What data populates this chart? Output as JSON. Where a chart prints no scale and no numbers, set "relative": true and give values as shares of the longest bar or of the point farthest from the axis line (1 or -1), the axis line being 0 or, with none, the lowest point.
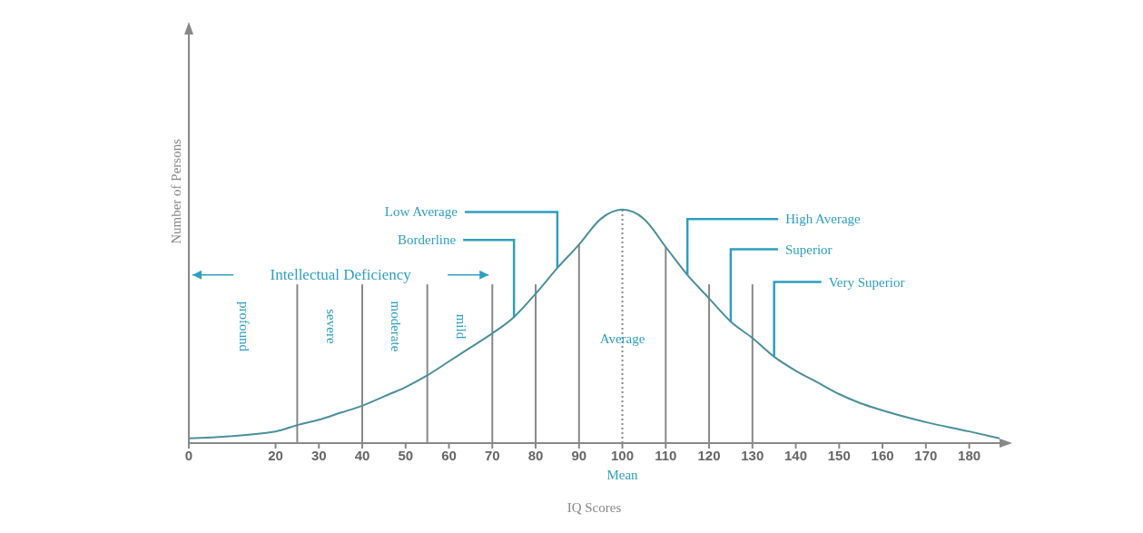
{
  "chart_data": {
    "type": "line",
    "relative": true,
    "xlabel": "IQ Scores",
    "ylabel": "Number of Persons",
    "x": [
      0,
      20,
      25,
      30,
      35,
      40,
      45,
      50,
      55,
      60,
      65,
      70,
      75,
      80,
      85,
      90,
      95,
      100,
      105,
      110,
      115,
      120,
      125,
      130,
      135,
      140,
      145,
      150,
      155,
      160,
      170,
      180,
      187
    ],
    "series": [
      {
        "color": "#4a8f9a",
        "values": [
          0.02,
          0.05,
          0.077,
          0.1,
          0.13,
          0.16,
          0.2,
          0.24,
          0.29,
          0.35,
          0.41,
          0.47,
          0.54,
          0.64,
          0.75,
          0.85,
          0.96,
          1,
          0.96,
          0.84,
          0.72,
          0.62,
          0.52,
          0.45,
          0.37,
          0.31,
          0.26,
          0.21,
          0.17,
          0.14,
          0.09,
          0.05,
          0.02
        ]
      }
    ],
    "xlim": [
      0,
      187
    ],
    "xticks": [
      0,
      20,
      30,
      40,
      50,
      60,
      70,
      80,
      90,
      100,
      110,
      120,
      130,
      140,
      150,
      160,
      170,
      180
    ],
    "marker": "none",
    "line_style": "solid",
    "ref_lines": [
      {
        "axis": "x",
        "value": 25,
        "color": "#888888"
      },
      {
        "axis": "x",
        "value": 40,
        "color": "#888888"
      },
      {
        "axis": "x",
        "value": 55,
        "color": "#888888"
      },
      {
        "axis": "x",
        "value": 70,
        "color": "#888888"
      },
      {
        "axis": "x",
        "value": 80,
        "color": "#888888"
      },
      {
        "axis": "x",
        "value": 90,
        "color": "#888888"
      },
      {
        "axis": "x",
        "value": 100,
        "color": "#888888",
        "line_style": "dotted"
      },
      {
        "axis": "x",
        "value": 110,
        "color": "#888888"
      },
      {
        "axis": "x",
        "value": 120,
        "color": "#888888"
      },
      {
        "axis": "x",
        "value": 130,
        "color": "#888888"
      }
    ],
    "annotations": [
      "Intellectual Deficiency",
      "profound",
      "severe",
      "moderate",
      "mild",
      "Average",
      {
        "text": "Low Average",
        "x": 85,
        "y": 0.75
      },
      {
        "text": "Borderline",
        "x": 75,
        "y": 0.54
      },
      {
        "text": "High Average",
        "x": 115,
        "y": 0.72
      },
      {
        "text": "Superior",
        "x": 125,
        "y": 0.52
      },
      {
        "text": "Very Superior",
        "x": 135,
        "y": 0.37
      },
      "Mean"
    ]
  }
}
